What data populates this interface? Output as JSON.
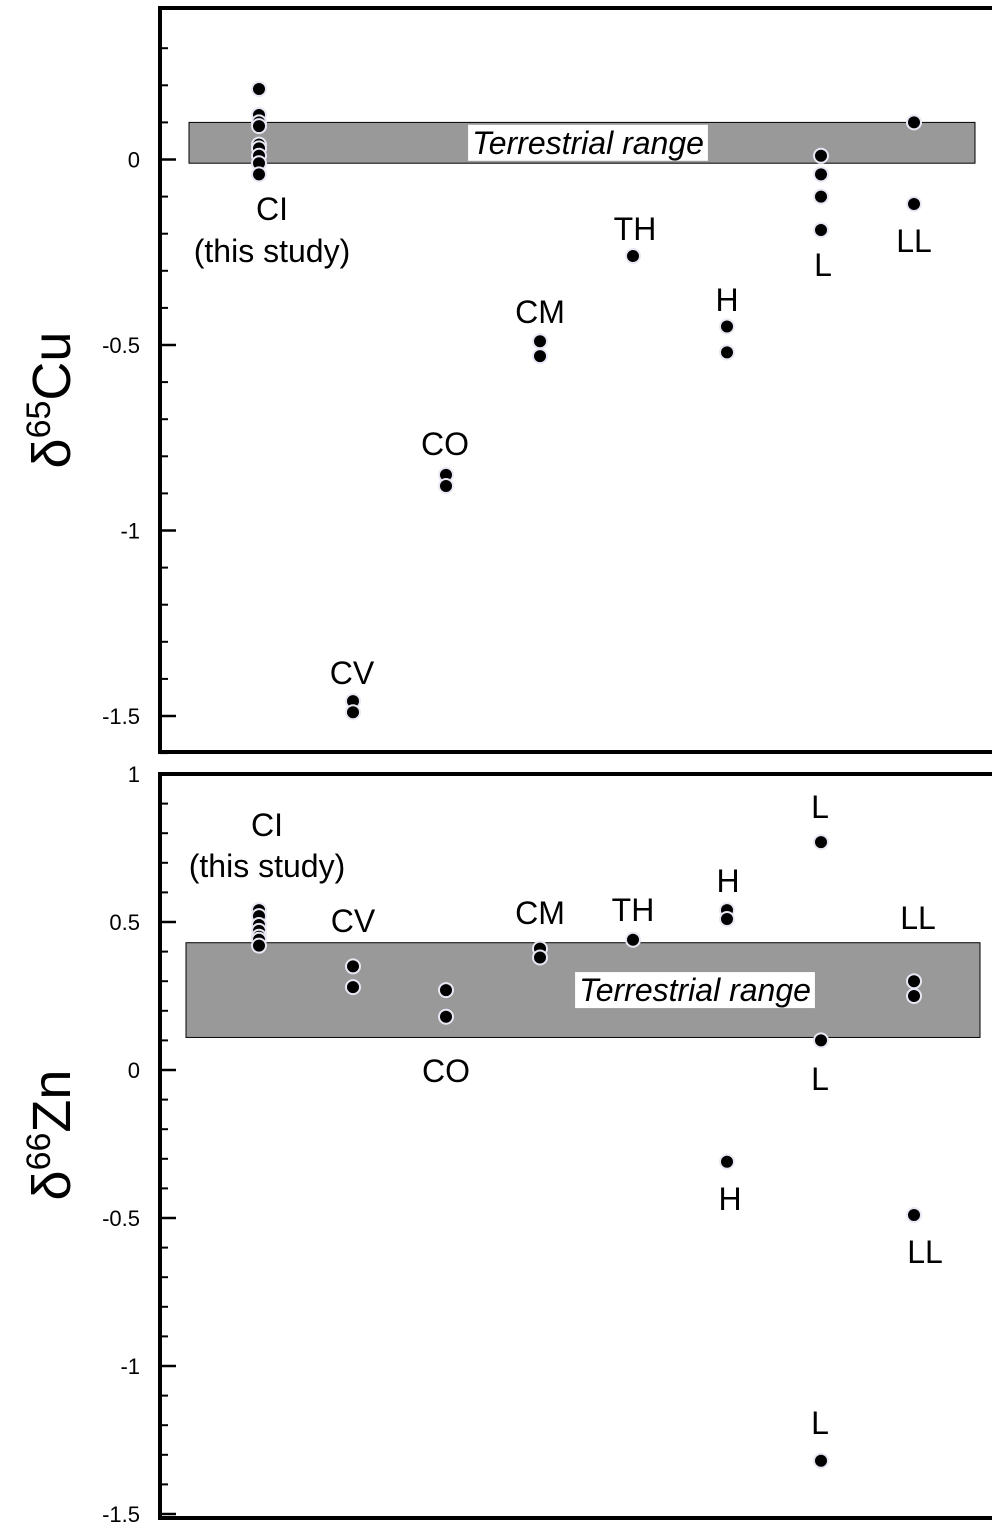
{
  "chart_data": [
    {
      "type": "scatter",
      "ylabel": {
        "symbol": "δ",
        "mass": "65",
        "element": "Cu"
      },
      "ylim": [
        -1.6,
        0.4
      ],
      "yticks": [
        0,
        -0.5,
        -1,
        -1.5
      ],
      "ytick_labels": [
        "0",
        "-0.5",
        "-1",
        "-1.5"
      ],
      "band": {
        "label": "Terrestrial range",
        "range": [
          -0.01,
          0.1
        ],
        "color": "#999999"
      },
      "groups": [
        {
          "id": "ci",
          "label": "CI",
          "sublabel": "(this study)",
          "x": 1,
          "values": [
            0.19,
            0.12,
            0.1,
            0.09,
            0.04,
            0.03,
            0.01,
            -0.01,
            -0.04
          ]
        },
        {
          "id": "cv",
          "label": "CV",
          "x": 2,
          "values": [
            -1.46,
            -1.49
          ]
        },
        {
          "id": "co",
          "label": "CO",
          "x": 3,
          "values": [
            -0.85,
            -0.88
          ]
        },
        {
          "id": "cm",
          "label": "CM",
          "x": 4,
          "values": [
            -0.49,
            -0.53
          ]
        },
        {
          "id": "th",
          "label": "TH",
          "x": 5,
          "values": [
            -0.26
          ]
        },
        {
          "id": "h",
          "label": "H",
          "x": 6,
          "values": [
            -0.45,
            -0.52
          ]
        },
        {
          "id": "l",
          "label": "L",
          "x": 7,
          "values": [
            0.01,
            -0.04,
            -0.1,
            -0.19
          ]
        },
        {
          "id": "ll",
          "label": "LL",
          "x": 8,
          "values": [
            0.1,
            -0.12
          ]
        }
      ]
    },
    {
      "type": "scatter",
      "ylabel": {
        "symbol": "δ",
        "mass": "66",
        "element": "Zn"
      },
      "ylim": [
        -1.5,
        1
      ],
      "yticks": [
        1,
        0.5,
        0,
        -0.5,
        -1,
        -1.5
      ],
      "ytick_labels": [
        "1",
        "0.5",
        "0",
        "-0.5",
        "-1",
        "-1.5"
      ],
      "band": {
        "label": "Terrestrial range",
        "range": [
          0.11,
          0.43
        ],
        "color": "#999999"
      },
      "groups": [
        {
          "id": "ci",
          "label": "CI",
          "sublabel": "(this study)",
          "x": 1,
          "values": [
            0.54,
            0.52,
            0.49,
            0.47,
            0.45,
            0.44,
            0.42
          ]
        },
        {
          "id": "cv",
          "label": "CV",
          "x": 2,
          "values": [
            0.35,
            0.28
          ]
        },
        {
          "id": "co",
          "label": "CO",
          "x": 3,
          "values": [
            0.27,
            0.18
          ]
        },
        {
          "id": "cm",
          "label": "CM",
          "x": 4,
          "values": [
            0.41,
            0.38
          ]
        },
        {
          "id": "th",
          "label": "TH",
          "x": 5,
          "values": [
            0.44
          ]
        },
        {
          "id": "h-high",
          "label": "H",
          "x": 6,
          "values": [
            0.54,
            0.51
          ]
        },
        {
          "id": "h-low",
          "label": "H",
          "x": 6,
          "values": [
            -0.31
          ]
        },
        {
          "id": "l-high",
          "label": "L",
          "x": 7,
          "values": [
            0.77
          ]
        },
        {
          "id": "l-mid",
          "label": "L",
          "x": 7,
          "values": [
            0.1
          ]
        },
        {
          "id": "l-low",
          "label": "L",
          "x": 7,
          "values": [
            -1.32
          ]
        },
        {
          "id": "ll-high",
          "label": "LL",
          "x": 8,
          "values": [
            0.3,
            0.25
          ]
        },
        {
          "id": "ll-low",
          "label": "LL",
          "x": 8,
          "values": [
            -0.49
          ]
        }
      ]
    }
  ]
}
